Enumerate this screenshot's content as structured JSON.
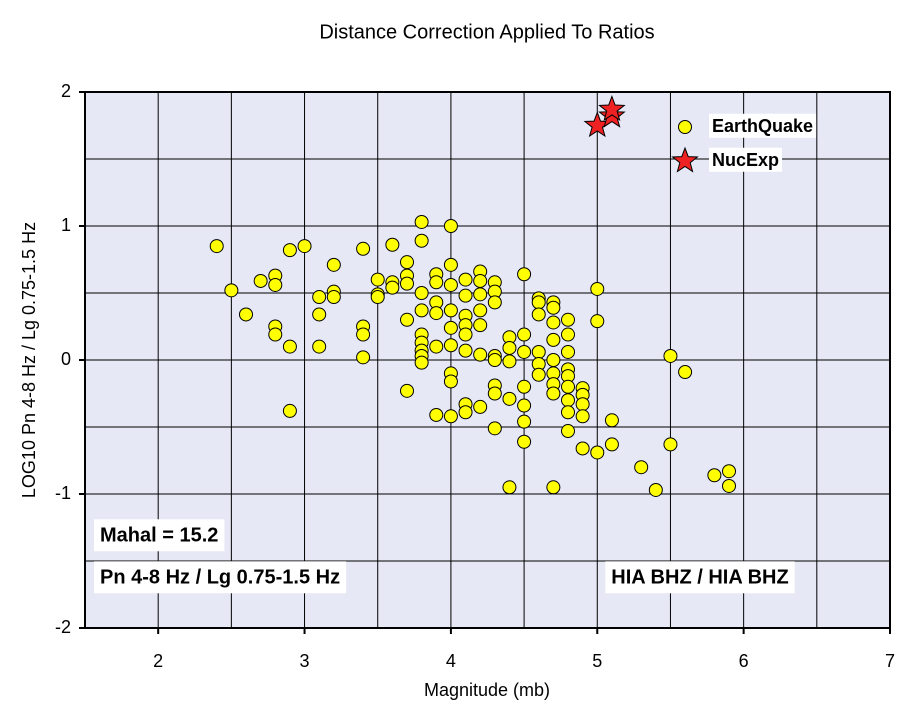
{
  "chart_data": {
    "type": "scatter",
    "title": "Distance Correction Applied To Ratios",
    "xlabel": "Magnitude (mb)",
    "ylabel": "LOG10 Pn 4-8 Hz / Lg 0.75-1.5 Hz",
    "xlim": [
      1.5,
      7
    ],
    "ylim": [
      -2,
      2
    ],
    "xticks": [
      2,
      3,
      4,
      5,
      6,
      7
    ],
    "yticks": [
      -2,
      -1,
      0,
      1,
      2
    ],
    "xgrid": [
      2,
      2.5,
      3,
      3.5,
      4,
      4.5,
      5,
      5.5,
      6,
      6.5
    ],
    "ygrid": [
      -1.5,
      -1,
      -0.5,
      0,
      0.5,
      1,
      1.5
    ],
    "background": "#e6e8f5",
    "legend": "upper right",
    "annotations": [
      "Mahal = 15.2",
      "Pn 4-8 Hz / Lg 0.75-1.5 Hz",
      "HIA BHZ / HIA BHZ"
    ],
    "series": [
      {
        "name": "EarthQuake",
        "color": "#ffff00",
        "marker": "circle",
        "x": [
          2.4,
          2.5,
          2.6,
          2.7,
          2.8,
          2.8,
          2.8,
          2.8,
          2.9,
          2.9,
          2.9,
          3.0,
          3.1,
          3.1,
          3.1,
          3.2,
          3.2,
          3.2,
          3.4,
          3.4,
          3.4,
          3.4,
          3.5,
          3.5,
          3.5,
          3.6,
          3.6,
          3.6,
          3.7,
          3.7,
          3.7,
          3.7,
          3.7,
          3.8,
          3.8,
          3.8,
          3.8,
          3.8,
          3.8,
          3.8,
          3.8,
          3.8,
          3.9,
          3.9,
          3.9,
          3.9,
          3.9,
          3.9,
          4.0,
          4.0,
          4.0,
          4.0,
          4.0,
          4.0,
          4.0,
          4.0,
          4.0,
          4.1,
          4.1,
          4.1,
          4.1,
          4.1,
          4.1,
          4.1,
          4.1,
          4.2,
          4.2,
          4.2,
          4.2,
          4.2,
          4.2,
          4.2,
          4.3,
          4.3,
          4.3,
          4.3,
          4.3,
          4.3,
          4.3,
          4.3,
          4.4,
          4.4,
          4.4,
          4.4,
          4.4,
          4.5,
          4.5,
          4.5,
          4.5,
          4.5,
          4.5,
          4.5,
          4.6,
          4.6,
          4.6,
          4.6,
          4.6,
          4.6,
          4.7,
          4.7,
          4.7,
          4.7,
          4.7,
          4.7,
          4.7,
          4.7,
          4.7,
          4.8,
          4.8,
          4.8,
          4.8,
          4.8,
          4.8,
          4.8,
          4.8,
          4.8,
          4.9,
          4.9,
          4.9,
          4.9,
          4.9,
          5.0,
          5.0,
          5.0,
          5.1,
          5.1,
          5.3,
          5.4,
          5.5,
          5.5,
          5.6,
          5.8,
          5.9,
          5.9
        ],
        "y": [
          0.85,
          0.52,
          0.34,
          0.59,
          0.63,
          0.56,
          0.25,
          0.19,
          0.82,
          0.1,
          -0.38,
          0.85,
          0.47,
          0.34,
          0.1,
          0.71,
          0.51,
          0.47,
          0.83,
          0.25,
          0.19,
          0.02,
          0.6,
          0.49,
          0.47,
          0.86,
          0.58,
          0.54,
          0.73,
          0.63,
          0.57,
          0.3,
          -0.23,
          1.03,
          0.89,
          0.5,
          0.37,
          0.19,
          0.13,
          0.07,
          0.03,
          -0.02,
          0.64,
          0.58,
          0.43,
          0.35,
          0.1,
          -0.41,
          1.0,
          0.71,
          0.56,
          0.37,
          0.24,
          0.11,
          -0.1,
          -0.16,
          -0.42,
          0.6,
          0.48,
          0.33,
          0.26,
          0.19,
          0.07,
          -0.33,
          -0.39,
          0.66,
          0.59,
          0.49,
          0.37,
          0.26,
          0.04,
          -0.35,
          0.58,
          0.51,
          0.43,
          0.03,
          0.0,
          -0.19,
          -0.25,
          -0.51,
          0.17,
          0.09,
          -0.01,
          -0.29,
          -0.95,
          0.64,
          0.19,
          0.06,
          -0.2,
          -0.34,
          -0.46,
          -0.61,
          0.46,
          0.43,
          0.34,
          0.06,
          -0.03,
          -0.11,
          0.43,
          0.39,
          0.28,
          0.15,
          0.0,
          -0.1,
          -0.18,
          -0.25,
          -0.95,
          0.3,
          0.19,
          0.06,
          -0.07,
          -0.12,
          -0.2,
          -0.3,
          -0.39,
          -0.53,
          -0.21,
          -0.26,
          -0.33,
          -0.42,
          -0.66,
          0.53,
          0.29,
          -0.69,
          -0.45,
          -0.63,
          -0.8,
          -0.97,
          0.03,
          -0.63,
          -0.09,
          -0.86,
          -0.83,
          -0.94
        ]
      },
      {
        "name": "NucExp",
        "color": "#ee2222",
        "marker": "star",
        "x": [
          5.0,
          5.1,
          5.1
        ],
        "y": [
          1.75,
          1.82,
          1.87
        ]
      }
    ]
  }
}
